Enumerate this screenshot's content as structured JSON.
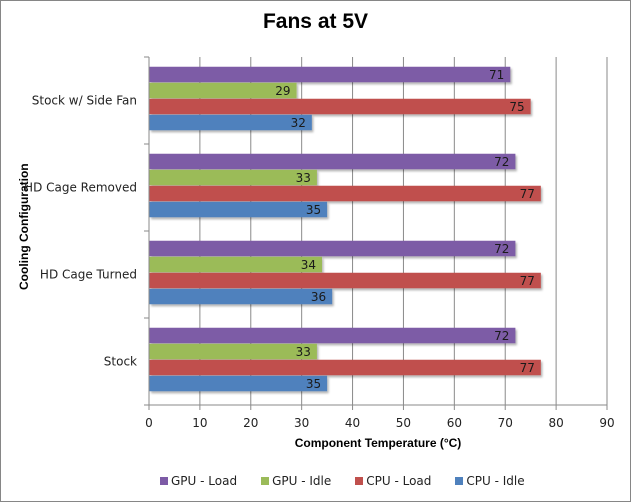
{
  "chart_data": {
    "type": "bar",
    "orientation": "horizontal",
    "title": "Fans at 5V",
    "xlabel": "Component Temperature (°C)",
    "ylabel": "Cooling Configuration",
    "xlim": [
      0,
      90
    ],
    "xticks": [
      0,
      10,
      20,
      30,
      40,
      50,
      60,
      70,
      80,
      90
    ],
    "grid": true,
    "legend_position": "bottom",
    "categories": [
      "Stock w/ Side Fan",
      "HD Cage Removed",
      "HD Cage Turned",
      "Stock"
    ],
    "series": [
      {
        "name": "GPU - Load",
        "color": "#7D5BA6",
        "values": [
          71,
          72,
          72,
          72
        ]
      },
      {
        "name": "GPU - Idle",
        "color": "#9BBB59",
        "values": [
          29,
          33,
          34,
          33
        ]
      },
      {
        "name": "CPU - Load",
        "color": "#C0504D",
        "values": [
          75,
          77,
          77,
          77
        ]
      },
      {
        "name": "CPU - Idle",
        "color": "#4F81BD",
        "values": [
          32,
          35,
          36,
          35
        ]
      }
    ],
    "legend_order": [
      "GPU - Load",
      "GPU - Idle",
      "CPU - Load",
      "CPU - Idle"
    ]
  }
}
